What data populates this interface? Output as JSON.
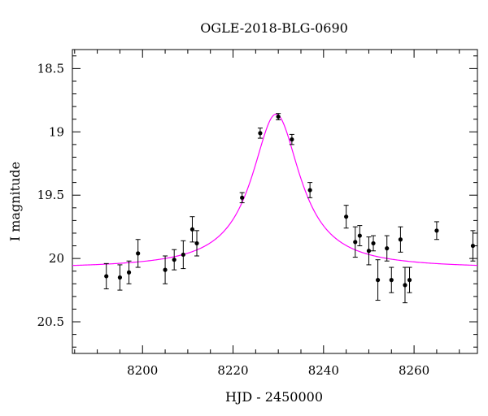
{
  "chart_data": {
    "type": "scatter",
    "title": "OGLE-2018-BLG-0690",
    "xlabel": "HJD - 2450000",
    "ylabel": "I magnitude",
    "xlim": [
      8184.5,
      8274
    ],
    "ylim": [
      20.75,
      18.35
    ],
    "y_inverted": true,
    "grid": false,
    "xticks": [
      8200,
      8220,
      8240,
      8260
    ],
    "xtick_labels": [
      "8200",
      "8220",
      "8240",
      "8260"
    ],
    "yticks": [
      18.5,
      19,
      19.5,
      20,
      20.5
    ],
    "ytick_labels": [
      "18.5",
      "19",
      "19.5",
      "20",
      "20.5"
    ],
    "series": [
      {
        "kind": "points",
        "color": "#000000",
        "points": [
          {
            "x": 8192.0,
            "y": 20.14,
            "err": 0.1
          },
          {
            "x": 8195.0,
            "y": 20.15,
            "err": 0.1
          },
          {
            "x": 8197.0,
            "y": 20.11,
            "err": 0.09
          },
          {
            "x": 8199.0,
            "y": 19.96,
            "err": 0.11
          },
          {
            "x": 8205.0,
            "y": 20.09,
            "err": 0.11
          },
          {
            "x": 8207.0,
            "y": 20.01,
            "err": 0.08
          },
          {
            "x": 8209.0,
            "y": 19.97,
            "err": 0.11
          },
          {
            "x": 8211.0,
            "y": 19.77,
            "err": 0.1
          },
          {
            "x": 8212.0,
            "y": 19.88,
            "err": 0.1
          },
          {
            "x": 8222.0,
            "y": 19.52,
            "err": 0.04
          },
          {
            "x": 8226.0,
            "y": 19.01,
            "err": 0.04
          },
          {
            "x": 8230.0,
            "y": 18.88,
            "err": 0.025
          },
          {
            "x": 8233.0,
            "y": 19.06,
            "err": 0.04
          },
          {
            "x": 8237.0,
            "y": 19.46,
            "err": 0.06
          },
          {
            "x": 8245.0,
            "y": 19.67,
            "err": 0.09
          },
          {
            "x": 8247.0,
            "y": 19.87,
            "err": 0.12
          },
          {
            "x": 8248.0,
            "y": 19.82,
            "err": 0.08
          },
          {
            "x": 8250.0,
            "y": 19.94,
            "err": 0.11
          },
          {
            "x": 8251.0,
            "y": 19.88,
            "err": 0.06
          },
          {
            "x": 8252.0,
            "y": 20.17,
            "err": 0.16
          },
          {
            "x": 8254.0,
            "y": 19.92,
            "err": 0.1
          },
          {
            "x": 8255.0,
            "y": 20.17,
            "err": 0.1
          },
          {
            "x": 8257.0,
            "y": 19.85,
            "err": 0.1
          },
          {
            "x": 8258.0,
            "y": 20.21,
            "err": 0.14
          },
          {
            "x": 8259.0,
            "y": 20.17,
            "err": 0.1
          },
          {
            "x": 8265.0,
            "y": 19.78,
            "err": 0.07
          },
          {
            "x": 8273.0,
            "y": 19.9,
            "err": 0.12
          }
        ]
      },
      {
        "kind": "model-curve",
        "color": "#ff00ff",
        "model": {
          "baseline": 20.08,
          "peak": 18.86,
          "t0": 8229.5,
          "width": 6.5
        }
      }
    ]
  }
}
